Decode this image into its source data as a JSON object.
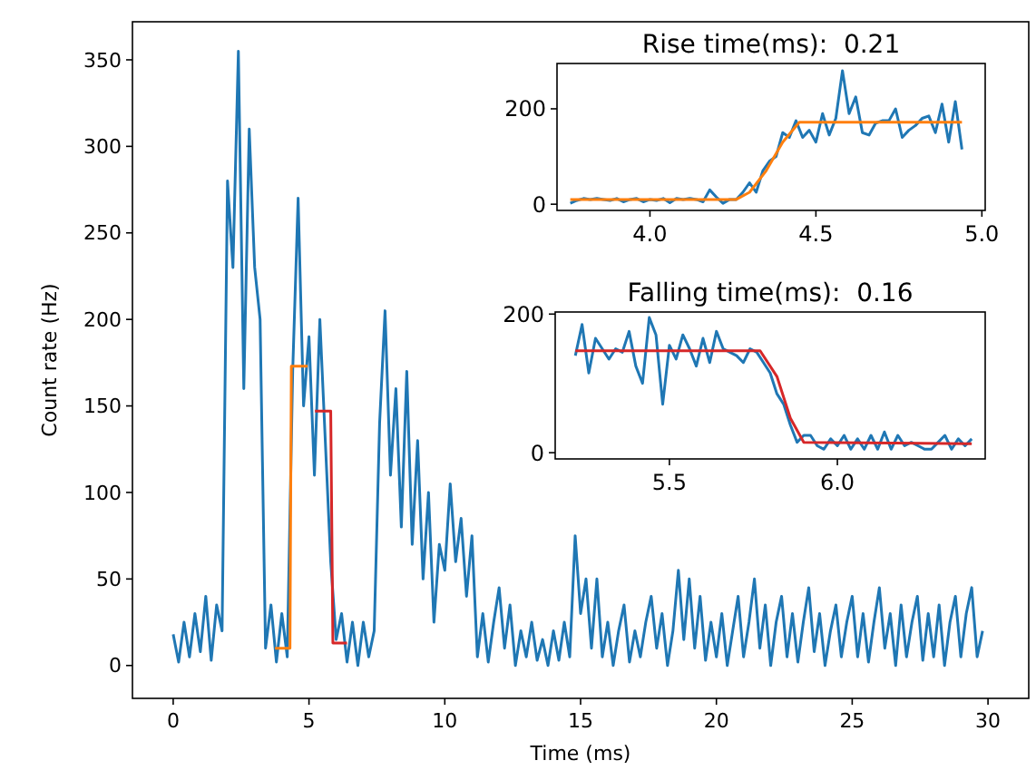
{
  "chart_data": [
    {
      "type": "line",
      "xlabel": "Time (ms)",
      "ylabel": "Count rate (Hz)",
      "xlim": [
        -1.5,
        31.5
      ],
      "ylim": [
        -19,
        372
      ],
      "xticks": [
        0,
        5,
        10,
        15,
        20,
        25,
        30
      ],
      "yticks": [
        0,
        50,
        100,
        150,
        200,
        250,
        300,
        350
      ],
      "series": [
        {
          "color": "#1f77b4",
          "x": [
            0,
            0.2,
            0.4,
            0.6,
            0.8,
            1.0,
            1.2,
            1.4,
            1.6,
            1.8,
            2.0,
            2.2,
            2.4,
            2.6,
            2.8,
            3.0,
            3.2,
            3.4,
            3.6,
            3.8,
            4.0,
            4.2,
            4.4,
            4.6,
            4.8,
            5.0,
            5.2,
            5.4,
            5.6,
            5.8,
            6.0,
            6.2,
            6.4,
            6.6,
            6.8,
            7.0,
            7.2,
            7.4,
            7.6,
            7.8,
            8.0,
            8.2,
            8.4,
            8.6,
            8.8,
            9.0,
            9.2,
            9.4,
            9.6,
            9.8,
            10.0,
            10.2,
            10.4,
            10.6,
            10.8,
            11.0,
            11.2,
            11.4,
            11.6,
            11.8,
            12.0,
            12.2,
            12.4,
            12.6,
            12.8,
            13.0,
            13.2,
            13.4,
            13.6,
            13.8,
            14.0,
            14.2,
            14.4,
            14.6,
            14.8,
            15.0,
            15.2,
            15.4,
            15.6,
            15.8,
            16.0,
            16.2,
            16.4,
            16.6,
            16.8,
            17.0,
            17.2,
            17.4,
            17.6,
            17.8,
            18.0,
            18.2,
            18.4,
            18.6,
            18.8,
            19.0,
            19.2,
            19.4,
            19.6,
            19.8,
            20.0,
            20.2,
            20.4,
            20.6,
            20.8,
            21.0,
            21.2,
            21.4,
            21.6,
            21.8,
            22.0,
            22.2,
            22.4,
            22.6,
            22.8,
            23.0,
            23.2,
            23.4,
            23.6,
            23.8,
            24.0,
            24.2,
            24.4,
            24.6,
            24.8,
            25.0,
            25.2,
            25.4,
            25.6,
            25.8,
            26.0,
            26.2,
            26.4,
            26.6,
            26.8,
            27.0,
            27.2,
            27.4,
            27.6,
            27.8,
            28.0,
            28.2,
            28.4,
            28.6,
            28.8,
            29.0,
            29.2,
            29.4,
            29.6,
            29.8
          ],
          "values": [
            18,
            2,
            25,
            5,
            30,
            8,
            40,
            3,
            35,
            20,
            280,
            230,
            355,
            160,
            310,
            230,
            200,
            10,
            35,
            2,
            30,
            5,
            170,
            270,
            150,
            190,
            110,
            200,
            130,
            60,
            15,
            30,
            2,
            25,
            0,
            25,
            5,
            20,
            140,
            205,
            110,
            160,
            80,
            170,
            70,
            130,
            50,
            100,
            25,
            70,
            55,
            105,
            60,
            85,
            40,
            75,
            5,
            30,
            2,
            25,
            45,
            10,
            35,
            0,
            20,
            5,
            25,
            3,
            15,
            0,
            20,
            3,
            25,
            5,
            75,
            30,
            50,
            10,
            50,
            5,
            25,
            0,
            20,
            35,
            2,
            20,
            5,
            25,
            40,
            10,
            30,
            0,
            20,
            55,
            15,
            50,
            10,
            40,
            3,
            25,
            5,
            30,
            0,
            20,
            40,
            5,
            25,
            50,
            10,
            35,
            0,
            25,
            40,
            5,
            30,
            2,
            25,
            45,
            8,
            30,
            0,
            20,
            35,
            5,
            25,
            40,
            5,
            30,
            2,
            25,
            45,
            10,
            30,
            0,
            35,
            5,
            25,
            40,
            3,
            30,
            5,
            35,
            0,
            25,
            40,
            5,
            30,
            45,
            5,
            20
          ]
        },
        {
          "color": "#ff7f0e",
          "x": [
            3.75,
            4.3,
            4.35,
            4.95
          ],
          "values": [
            10,
            10,
            173,
            173
          ]
        },
        {
          "color": "#d62728",
          "x": [
            5.22,
            5.8,
            5.88,
            6.4
          ],
          "values": [
            147,
            147,
            13,
            13
          ]
        }
      ]
    },
    {
      "type": "line",
      "title": "Rise time(ms):  0.21",
      "xlim": [
        3.72,
        5.01
      ],
      "ylim": [
        -13,
        295
      ],
      "xticks": [
        {
          "value": 4,
          "label": "4.0"
        },
        4.5,
        {
          "value": 5,
          "label": "5.0"
        }
      ],
      "yticks": [
        0,
        200
      ],
      "series": [
        {
          "color": "#1f77b4",
          "x": [
            3.76,
            3.78,
            3.8,
            3.82,
            3.84,
            3.86,
            3.88,
            3.9,
            3.92,
            3.94,
            3.96,
            3.98,
            4.0,
            4.02,
            4.04,
            4.06,
            4.08,
            4.1,
            4.12,
            4.14,
            4.16,
            4.18,
            4.2,
            4.22,
            4.24,
            4.26,
            4.28,
            4.3,
            4.32,
            4.34,
            4.36,
            4.38,
            4.4,
            4.42,
            4.44,
            4.46,
            4.48,
            4.5,
            4.52,
            4.54,
            4.56,
            4.58,
            4.6,
            4.62,
            4.64,
            4.66,
            4.68,
            4.7,
            4.72,
            4.74,
            4.76,
            4.78,
            4.8,
            4.82,
            4.84,
            4.86,
            4.88,
            4.9,
            4.92,
            4.94
          ],
          "values": [
            2,
            8,
            12,
            10,
            12,
            10,
            8,
            12,
            5,
            10,
            12,
            5,
            10,
            8,
            12,
            3,
            12,
            10,
            12,
            10,
            5,
            30,
            15,
            2,
            10,
            10,
            25,
            45,
            25,
            70,
            90,
            100,
            150,
            140,
            175,
            140,
            155,
            130,
            190,
            145,
            180,
            280,
            190,
            225,
            150,
            145,
            170,
            175,
            175,
            200,
            140,
            155,
            165,
            180,
            185,
            150,
            210,
            130,
            215,
            115
          ]
        },
        {
          "color": "#ff7f0e",
          "x": [
            3.76,
            4.26,
            4.3,
            4.35,
            4.4,
            4.45,
            4.94
          ],
          "values": [
            10,
            10,
            25,
            70,
            130,
            172,
            172
          ]
        }
      ]
    },
    {
      "type": "line",
      "title": "Falling time(ms):  0.16",
      "xlim": [
        5.16,
        6.44
      ],
      "ylim": [
        -9,
        203
      ],
      "xticks": [
        5.5,
        {
          "value": 6,
          "label": "6.0"
        }
      ],
      "yticks": [
        0,
        200
      ],
      "series": [
        {
          "color": "#1f77b4",
          "x": [
            5.22,
            5.24,
            5.26,
            5.28,
            5.3,
            5.32,
            5.34,
            5.36,
            5.38,
            5.4,
            5.42,
            5.44,
            5.46,
            5.48,
            5.5,
            5.52,
            5.54,
            5.56,
            5.58,
            5.6,
            5.62,
            5.64,
            5.66,
            5.68,
            5.7,
            5.72,
            5.74,
            5.76,
            5.78,
            5.8,
            5.82,
            5.84,
            5.86,
            5.88,
            5.9,
            5.92,
            5.94,
            5.96,
            5.98,
            6.0,
            6.02,
            6.04,
            6.06,
            6.08,
            6.1,
            6.12,
            6.14,
            6.16,
            6.18,
            6.2,
            6.22,
            6.24,
            6.26,
            6.28,
            6.3,
            6.32,
            6.34,
            6.36,
            6.38,
            6.4
          ],
          "values": [
            140,
            185,
            115,
            165,
            150,
            135,
            150,
            145,
            175,
            125,
            100,
            195,
            170,
            70,
            155,
            135,
            170,
            150,
            125,
            165,
            130,
            175,
            150,
            145,
            140,
            130,
            150,
            145,
            130,
            115,
            85,
            70,
            40,
            15,
            25,
            25,
            10,
            5,
            20,
            10,
            25,
            5,
            20,
            5,
            25,
            5,
            30,
            5,
            25,
            10,
            15,
            10,
            5,
            5,
            15,
            25,
            5,
            20,
            10,
            20
          ]
        },
        {
          "color": "#d62728",
          "x": [
            5.22,
            5.77,
            5.82,
            5.86,
            5.9,
            6.4
          ],
          "values": [
            147,
            147,
            110,
            50,
            15,
            13
          ]
        }
      ]
    }
  ]
}
